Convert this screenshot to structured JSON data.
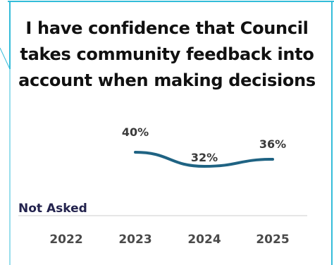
{
  "chart_data": {
    "type": "line",
    "title": "I have confidence that Council takes community feedback into account when making decisions",
    "categories": [
      "2022",
      "2023",
      "2024",
      "2025"
    ],
    "series": [
      {
        "values": [
          null,
          40,
          32,
          36
        ],
        "data_labels": [
          "",
          "40%",
          "32%",
          "36%"
        ]
      }
    ],
    "not_asked": {
      "category": "2022",
      "label": "Not Asked"
    },
    "xlabel": "",
    "ylabel": "",
    "grid": false,
    "colors": {
      "line": "#1f6383",
      "frame": "#33bcd9",
      "baseline": "#dddddd",
      "not_asked_text": "#23234e",
      "tick_text": "#4a4a4a",
      "label_text": "#3a3a3a"
    }
  }
}
